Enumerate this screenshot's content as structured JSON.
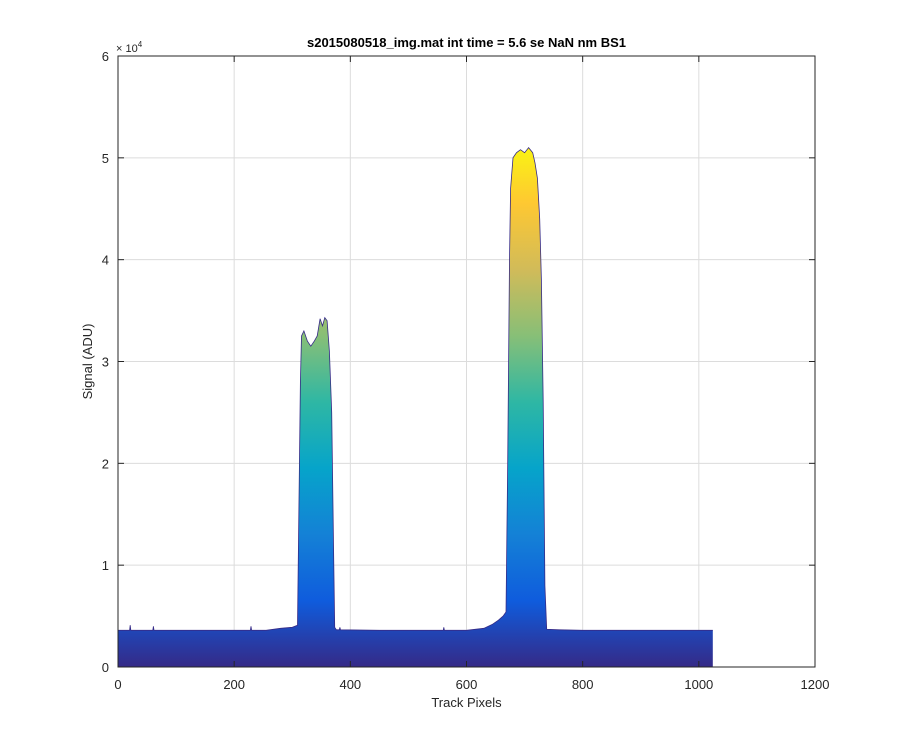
{
  "chart_data": {
    "type": "area",
    "title": "s2015080518_img.mat int time = 5.6 se   NaN nm BS1",
    "xlabel": "Track Pixels",
    "ylabel": "Signal (ADU)",
    "xlim": [
      0,
      1200
    ],
    "ylim": [
      0,
      60000
    ],
    "x_ticks": [
      0,
      200,
      400,
      600,
      800,
      1000,
      1200
    ],
    "x_tick_labels": [
      "0",
      "200",
      "400",
      "600",
      "800",
      "1000",
      "1200"
    ],
    "y_ticks": [
      0,
      10000,
      20000,
      30000,
      40000,
      50000,
      60000
    ],
    "y_tick_labels": [
      "0",
      "1",
      "2",
      "3",
      "4",
      "5",
      "6"
    ],
    "y_exponent_label": "× 10",
    "y_exponent_power": "4",
    "grid": true,
    "colormap": [
      "#352a87",
      "#0f5cdd",
      "#1481d6",
      "#06a4ca",
      "#2eb7a4",
      "#87bf77",
      "#d1bb59",
      "#fec832",
      "#f9fb0e"
    ],
    "series": [
      {
        "x": [
          0,
          20,
          21,
          22,
          60,
          61,
          62,
          100,
          200,
          228,
          229,
          230,
          255,
          280,
          300,
          309,
          312,
          314,
          316,
          320,
          326,
          332,
          338,
          343,
          348,
          352,
          356,
          360,
          364,
          368,
          371,
          373,
          376,
          381,
          382,
          383,
          450,
          560,
          561,
          562,
          600,
          630,
          645,
          655,
          663,
          668,
          671,
          674,
          676,
          680,
          686,
          693,
          700,
          707,
          714,
          718,
          722,
          726,
          729,
          732,
          735,
          738,
          760,
          800,
          900,
          1000,
          1024
        ],
        "y": [
          3600,
          3600,
          4100,
          3600,
          3600,
          4000,
          3600,
          3600,
          3600,
          3600,
          4000,
          3600,
          3600,
          3800,
          3900,
          4100,
          18000,
          28000,
          32500,
          33000,
          32000,
          31500,
          32000,
          32500,
          34200,
          33500,
          34300,
          34000,
          31000,
          25000,
          12000,
          3900,
          3650,
          3650,
          3900,
          3650,
          3600,
          3600,
          3900,
          3600,
          3600,
          3800,
          4200,
          4600,
          5000,
          5400,
          20000,
          40000,
          47000,
          50000,
          50500,
          50800,
          50500,
          51000,
          50500,
          49500,
          48000,
          44000,
          38000,
          26000,
          8000,
          3700,
          3650,
          3600,
          3600,
          3600,
          3600
        ]
      }
    ]
  }
}
